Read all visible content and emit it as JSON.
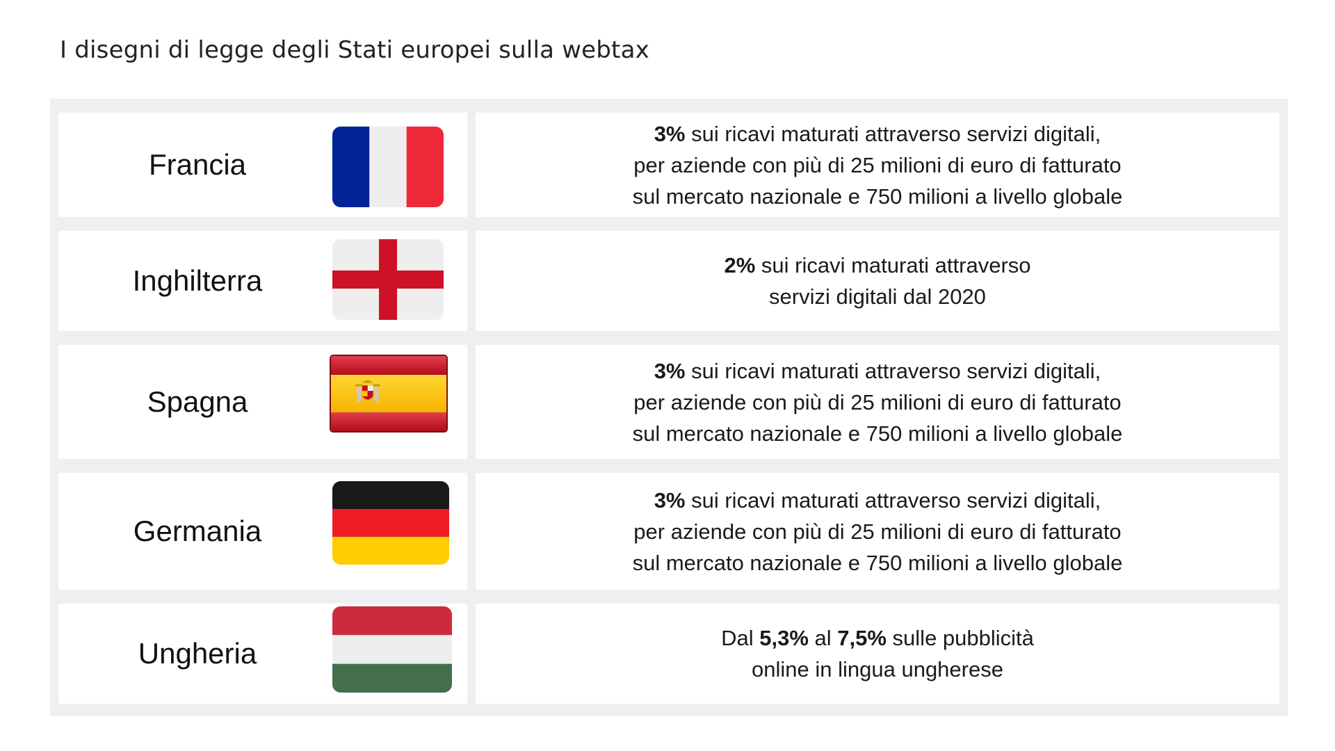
{
  "title": "I disegni di legge degli Stati europei sulla webtax",
  "rows": [
    {
      "country": "Francia",
      "flag_icon": "france-flag-icon",
      "lines": [
        {
          "bold": "3%",
          "text": " sui ricavi maturati attraverso servizi digitali,"
        },
        {
          "bold": "",
          "text": "per aziende con più di 25 milioni di euro di fatturato"
        },
        {
          "bold": "",
          "text": "sul mercato nazionale e 750 milioni a livello globale"
        }
      ]
    },
    {
      "country": "Inghilterra",
      "flag_icon": "england-flag-icon",
      "lines": [
        {
          "bold": "2%",
          "text": " sui ricavi maturati attraverso"
        },
        {
          "bold": "",
          "text": "servizi digitali dal 2020"
        }
      ]
    },
    {
      "country": "Spagna",
      "flag_icon": "spain-flag-icon",
      "lines": [
        {
          "bold": "3%",
          "text": " sui ricavi maturati attraverso servizi digitali,"
        },
        {
          "bold": "",
          "text": "per aziende con più di 25 milioni di euro di fatturato"
        },
        {
          "bold": "",
          "text": "sul mercato nazionale e 750 milioni a livello globale"
        }
      ]
    },
    {
      "country": "Germania",
      "flag_icon": "germany-flag-icon",
      "lines": [
        {
          "bold": "3%",
          "text": " sui ricavi maturati attraverso servizi digitali,"
        },
        {
          "bold": "",
          "text": "per aziende con più di 25 milioni di euro di fatturato"
        },
        {
          "bold": "",
          "text": "sul mercato nazionale e 750 milioni a livello globale"
        }
      ]
    },
    {
      "country": "Ungheria",
      "flag_icon": "hungary-flag-icon",
      "lines": [
        {
          "parts": [
            {
              "bold": false,
              "text": "Dal "
            },
            {
              "bold": true,
              "text": "5,3%"
            },
            {
              "bold": false,
              "text": " al "
            },
            {
              "bold": true,
              "text": "7,5%"
            },
            {
              "bold": false,
              "text": " sulle pubblicità"
            }
          ]
        },
        {
          "bold": "",
          "text": "online in lingua ungherese"
        }
      ]
    }
  ],
  "colors": {
    "table_background": "#eeeff1",
    "cell_background": "#ffffff",
    "france_blue": "#002395",
    "france_white": "#eeeeee",
    "france_red": "#ed2939",
    "england_red": "#ce1124",
    "spain_red": "#c60b1e",
    "spain_yellow": "#ffc400",
    "germany_black": "#1a1a1a",
    "germany_red": "#ee1c25",
    "germany_gold": "#ffce00",
    "hungary_red": "#cd2a3e",
    "hungary_white": "#eeeeee",
    "hungary_green": "#436f4d"
  }
}
